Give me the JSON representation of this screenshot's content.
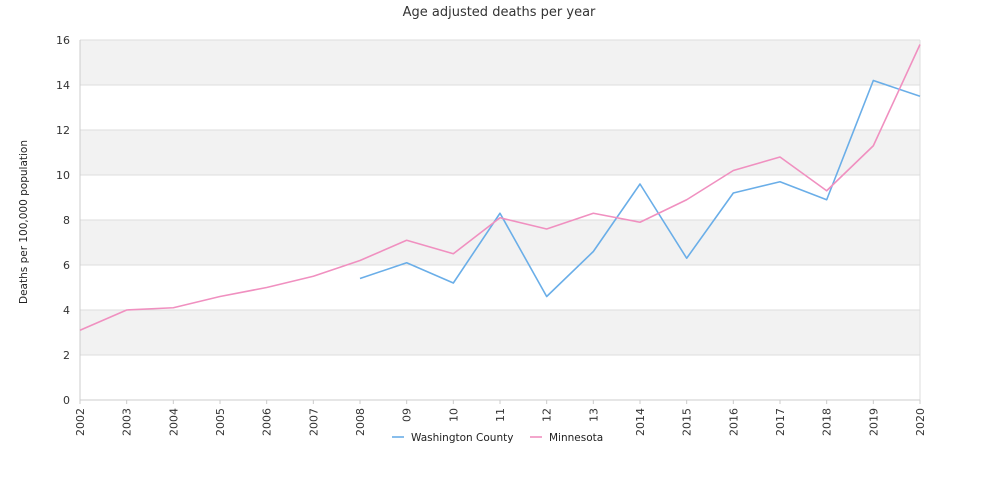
{
  "chart_data": {
    "type": "line",
    "title": "Age adjusted deaths per year",
    "ylabel": "Deaths per 100,000 population",
    "xlabel": "",
    "ylim": [
      0,
      16
    ],
    "yticks": [
      "0",
      "2",
      "4",
      "6",
      "8",
      "10",
      "12",
      "14",
      "16"
    ],
    "categories": [
      "2002",
      "2003",
      "2004",
      "2005",
      "2006",
      "2007",
      "2008",
      "09",
      "10",
      "11",
      "12",
      "13",
      "2014",
      "2015",
      "2016",
      "2017",
      "2018",
      "2019",
      "2020"
    ],
    "grid": "horizontal alternating bands",
    "legend": "bottom-center",
    "series": [
      {
        "name": "Washington County",
        "color": "#6aaee8",
        "values": [
          null,
          null,
          null,
          null,
          null,
          null,
          5.4,
          6.1,
          5.2,
          8.3,
          4.6,
          6.6,
          9.6,
          6.3,
          9.2,
          9.7,
          8.9,
          14.2,
          13.5
        ]
      },
      {
        "name": "Minnesota",
        "color": "#f090c0",
        "values": [
          3.1,
          4.0,
          4.1,
          4.6,
          5.0,
          5.5,
          6.2,
          7.1,
          6.5,
          8.1,
          7.6,
          8.3,
          7.9,
          8.9,
          10.2,
          10.8,
          9.3,
          11.3,
          15.8
        ]
      }
    ]
  }
}
